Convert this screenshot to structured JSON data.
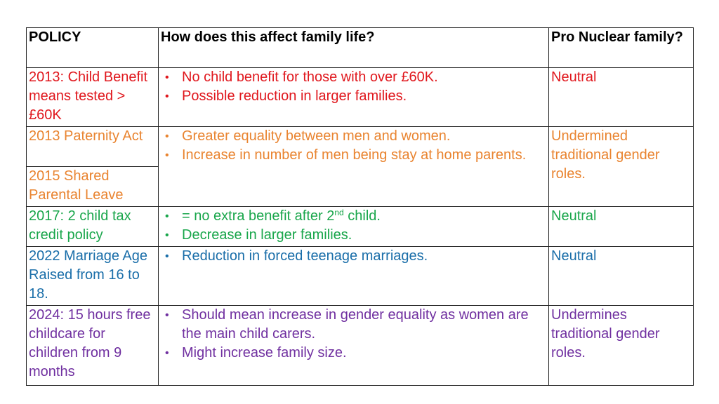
{
  "headers": {
    "policy": "POLICY",
    "effect": "How does this affect family life?",
    "pro_nuclear": "Pro Nuclear family?"
  },
  "rows": [
    {
      "policy": "2013: Child Benefit means tested > £60K",
      "effects": [
        "No child benefit for those with over £60K.",
        "Possible reduction in larger families."
      ],
      "pro": "Neutral",
      "color": "#e0171d"
    },
    {
      "policy": "2013 Paternity Act",
      "policy2": "2015 Shared Parental Leave",
      "effects": [
        "Greater equality between men and women.",
        "Increase in number of men being stay at home parents."
      ],
      "pro": "Undermined traditional gender roles.",
      "color": "#e98430"
    },
    {
      "policy": "2017: 2 child tax credit policy",
      "effects_prefix": "= no extra benefit after 2",
      "effects_sup": "nd",
      "effects_suffix": " child.",
      "effects": [
        "Decrease in larger families."
      ],
      "pro": "Neutral",
      "color": "#19a64b"
    },
    {
      "policy": "2022 Marriage Age Raised from 16 to 18.",
      "effects": [
        "Reduction in forced teenage marriages."
      ],
      "pro": "Neutral",
      "color": "#1a6ea9"
    },
    {
      "policy": "2024: 15 hours free childcare for children from 9 months",
      "effects": [
        "Should mean increase in gender equality as women are the main child carers.",
        "Might increase family size."
      ],
      "pro": "Undermines traditional gender roles.",
      "color": "#7030a0"
    }
  ],
  "bullet_glyph": "•"
}
